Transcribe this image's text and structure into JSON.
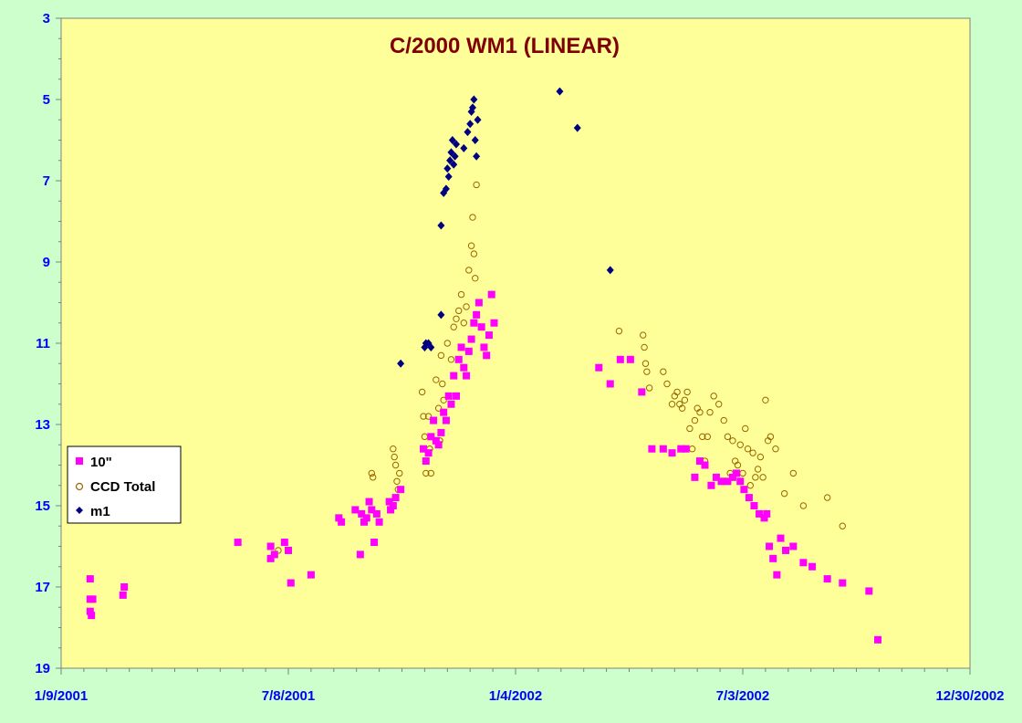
{
  "chart_data": {
    "type": "scatter",
    "title": "C/2000 WM1 (LINEAR)",
    "xlabel": "",
    "ylabel": "",
    "x_tick_labels": [
      "1/9/2001",
      "7/8/2001",
      "1/4/2002",
      "7/3/2002",
      "12/30/2002"
    ],
    "y_tick_labels": [
      "3",
      "5",
      "7",
      "9",
      "11",
      "13",
      "15",
      "17",
      "19"
    ],
    "xlim": [
      "2001-01-09",
      "2002-12-30"
    ],
    "ylim": [
      3,
      19
    ],
    "y_inverted": true,
    "grid": false,
    "legend_position": "left",
    "colors": {
      "plot_bg": "#ffff99",
      "outer_bg": "#ccffcc",
      "axis": "#808080",
      "title": "#800000",
      "tick_text": "#0000ff",
      "series_10in": "#ff00ff",
      "series_ccd_edge": "#996600",
      "series_m1": "#000080"
    },
    "series": [
      {
        "name": "10\"",
        "marker": "square",
        "x": [
          "2001-02-01",
          "2001-02-01",
          "2001-02-01",
          "2001-02-02",
          "2001-02-03",
          "2001-02-27",
          "2001-02-28",
          "2001-05-29",
          "2001-06-24",
          "2001-06-24",
          "2001-06-27",
          "2001-07-05",
          "2001-07-08",
          "2001-07-10",
          "2001-07-26",
          "2001-08-17",
          "2001-08-19",
          "2001-08-30",
          "2001-09-03",
          "2001-09-04",
          "2001-09-06",
          "2001-09-08",
          "2001-09-10",
          "2001-09-12",
          "2001-09-14",
          "2001-09-16",
          "2001-09-18",
          "2001-09-26",
          "2001-09-27",
          "2001-09-29",
          "2001-10-01",
          "2001-10-05",
          "2001-10-23",
          "2001-10-25",
          "2001-10-27",
          "2001-10-29",
          "2001-10-31",
          "2001-11-02",
          "2001-11-04",
          "2001-11-06",
          "2001-11-08",
          "2001-11-10",
          "2001-11-12",
          "2001-11-14",
          "2001-11-16",
          "2001-11-18",
          "2001-11-20",
          "2001-11-22",
          "2001-11-24",
          "2001-11-26",
          "2001-11-28",
          "2001-11-30",
          "2001-12-02",
          "2001-12-04",
          "2001-12-06",
          "2001-12-08",
          "2001-12-10",
          "2001-12-12",
          "2001-12-14",
          "2001-12-16",
          "2001-12-18",
          "2002-03-11",
          "2002-03-20",
          "2002-03-28",
          "2002-04-05",
          "2002-04-14",
          "2002-04-22",
          "2002-05-01",
          "2002-05-08",
          "2002-05-15",
          "2002-05-19",
          "2002-05-26",
          "2002-05-30",
          "2002-06-03",
          "2002-06-08",
          "2002-06-12",
          "2002-06-16",
          "2002-06-21",
          "2002-06-25",
          "2002-06-28",
          "2002-07-01",
          "2002-07-04",
          "2002-07-08",
          "2002-07-12",
          "2002-07-16",
          "2002-07-20",
          "2002-07-22",
          "2002-07-24",
          "2002-07-27",
          "2002-07-30",
          "2002-08-02",
          "2002-08-06",
          "2002-08-12",
          "2002-08-20",
          "2002-08-27",
          "2002-09-08",
          "2002-09-20",
          "2002-10-11",
          "2002-10-18"
        ],
        "y": [
          16.8,
          17.3,
          17.6,
          17.7,
          17.3,
          17.2,
          17.0,
          15.9,
          16.0,
          16.3,
          16.2,
          15.9,
          16.1,
          16.9,
          16.7,
          15.3,
          15.4,
          15.1,
          16.2,
          15.2,
          15.4,
          15.3,
          14.9,
          15.1,
          15.9,
          15.2,
          15.4,
          14.9,
          15.1,
          15.0,
          14.8,
          14.6,
          13.6,
          13.9,
          13.7,
          13.3,
          12.9,
          13.4,
          13.5,
          13.2,
          12.7,
          12.9,
          12.3,
          12.5,
          11.8,
          12.3,
          11.4,
          11.1,
          11.6,
          11.8,
          11.2,
          10.9,
          10.5,
          10.3,
          10.0,
          10.6,
          11.1,
          11.3,
          10.8,
          9.8,
          10.5,
          11.6,
          12.0,
          11.4,
          11.4,
          12.2,
          13.6,
          13.6,
          13.7,
          13.6,
          13.6,
          14.3,
          13.9,
          14.0,
          14.5,
          14.3,
          14.4,
          14.4,
          14.3,
          14.2,
          14.4,
          14.6,
          14.8,
          15.0,
          15.2,
          15.3,
          15.2,
          16.0,
          16.3,
          16.7,
          15.8,
          16.1,
          16.0,
          16.4,
          16.5,
          16.8,
          16.9,
          17.1,
          18.3
        ]
      },
      {
        "name": "CCD Total",
        "marker": "circle",
        "x": [
          "2001-06-30",
          "2001-09-12",
          "2001-09-13",
          "2001-09-29",
          "2001-09-30",
          "2001-10-01",
          "2001-10-02",
          "2001-10-03",
          "2001-10-04",
          "2001-10-22",
          "2001-10-23",
          "2001-10-24",
          "2001-10-25",
          "2001-10-27",
          "2001-10-28",
          "2001-10-29",
          "2001-11-02",
          "2001-11-04",
          "2001-11-05",
          "2001-11-06",
          "2001-11-07",
          "2001-11-08",
          "2001-11-11",
          "2001-11-14",
          "2001-11-16",
          "2001-11-18",
          "2001-11-20",
          "2001-11-22",
          "2001-11-24",
          "2001-11-26",
          "2001-11-28",
          "2001-11-30",
          "2001-12-01",
          "2001-12-02",
          "2001-12-03",
          "2001-12-04",
          "2002-03-27",
          "2002-04-15",
          "2002-04-16",
          "2002-04-17",
          "2002-04-18",
          "2002-04-20",
          "2002-05-01",
          "2002-05-04",
          "2002-05-08",
          "2002-05-10",
          "2002-05-12",
          "2002-05-14",
          "2002-05-16",
          "2002-05-18",
          "2002-05-20",
          "2002-05-22",
          "2002-05-24",
          "2002-05-26",
          "2002-05-28",
          "2002-05-30",
          "2002-06-01",
          "2002-06-03",
          "2002-06-05",
          "2002-06-07",
          "2002-06-10",
          "2002-06-14",
          "2002-06-18",
          "2002-06-21",
          "2002-06-23",
          "2002-06-25",
          "2002-06-27",
          "2002-06-29",
          "2002-07-01",
          "2002-07-03",
          "2002-07-05",
          "2002-07-07",
          "2002-07-09",
          "2002-07-11",
          "2002-07-13",
          "2002-07-15",
          "2002-07-17",
          "2002-07-19",
          "2002-07-21",
          "2002-07-23",
          "2002-07-25",
          "2002-07-29",
          "2002-08-05",
          "2002-08-12",
          "2002-08-20",
          "2002-09-08",
          "2002-09-20"
        ],
        "y": [
          16.1,
          14.2,
          14.3,
          13.6,
          13.8,
          14.0,
          14.4,
          14.6,
          14.2,
          12.2,
          12.8,
          13.3,
          14.2,
          12.8,
          13.6,
          14.2,
          11.9,
          12.6,
          13.4,
          11.3,
          12.0,
          12.4,
          11.0,
          11.4,
          10.6,
          10.4,
          10.2,
          9.8,
          10.5,
          10.1,
          9.2,
          8.6,
          7.9,
          8.8,
          9.4,
          7.1,
          10.7,
          10.8,
          11.1,
          11.5,
          11.7,
          12.1,
          11.7,
          12.0,
          12.5,
          12.3,
          12.2,
          12.5,
          12.6,
          12.4,
          12.2,
          13.1,
          13.6,
          12.9,
          12.6,
          12.7,
          13.3,
          13.9,
          13.3,
          12.7,
          12.3,
          12.5,
          12.9,
          13.3,
          14.2,
          13.4,
          13.9,
          14.0,
          13.5,
          14.2,
          13.1,
          13.6,
          14.5,
          13.7,
          14.3,
          14.1,
          13.8,
          14.3,
          12.4,
          13.4,
          13.3,
          13.6,
          14.7,
          14.2,
          15.0,
          14.8,
          15.5
        ],
        "note": ""
      },
      {
        "name": "m1",
        "marker": "diamond",
        "x": [
          "2001-10-05",
          "2001-10-24",
          "2001-10-25",
          "2001-10-27",
          "2001-10-29",
          "2001-11-06",
          "2001-11-06",
          "2001-11-08",
          "2001-11-10",
          "2001-11-11",
          "2001-11-12",
          "2001-11-13",
          "2001-11-14",
          "2001-11-15",
          "2001-11-16",
          "2001-11-17",
          "2001-11-18",
          "2001-11-24",
          "2001-11-27",
          "2001-11-29",
          "2001-11-30",
          "2001-12-01",
          "2001-12-02",
          "2001-12-03",
          "2001-12-04",
          "2001-12-05",
          "2002-02-08",
          "2002-02-22",
          "2002-03-20"
        ],
        "y": [
          11.5,
          11.1,
          11.0,
          11.0,
          11.1,
          10.3,
          8.1,
          7.3,
          7.2,
          6.7,
          6.9,
          6.5,
          6.3,
          6.0,
          6.6,
          6.4,
          6.1,
          6.2,
          5.8,
          5.6,
          5.3,
          5.2,
          5.0,
          6.0,
          6.4,
          5.5,
          4.8,
          5.7,
          9.2
        ]
      }
    ]
  }
}
